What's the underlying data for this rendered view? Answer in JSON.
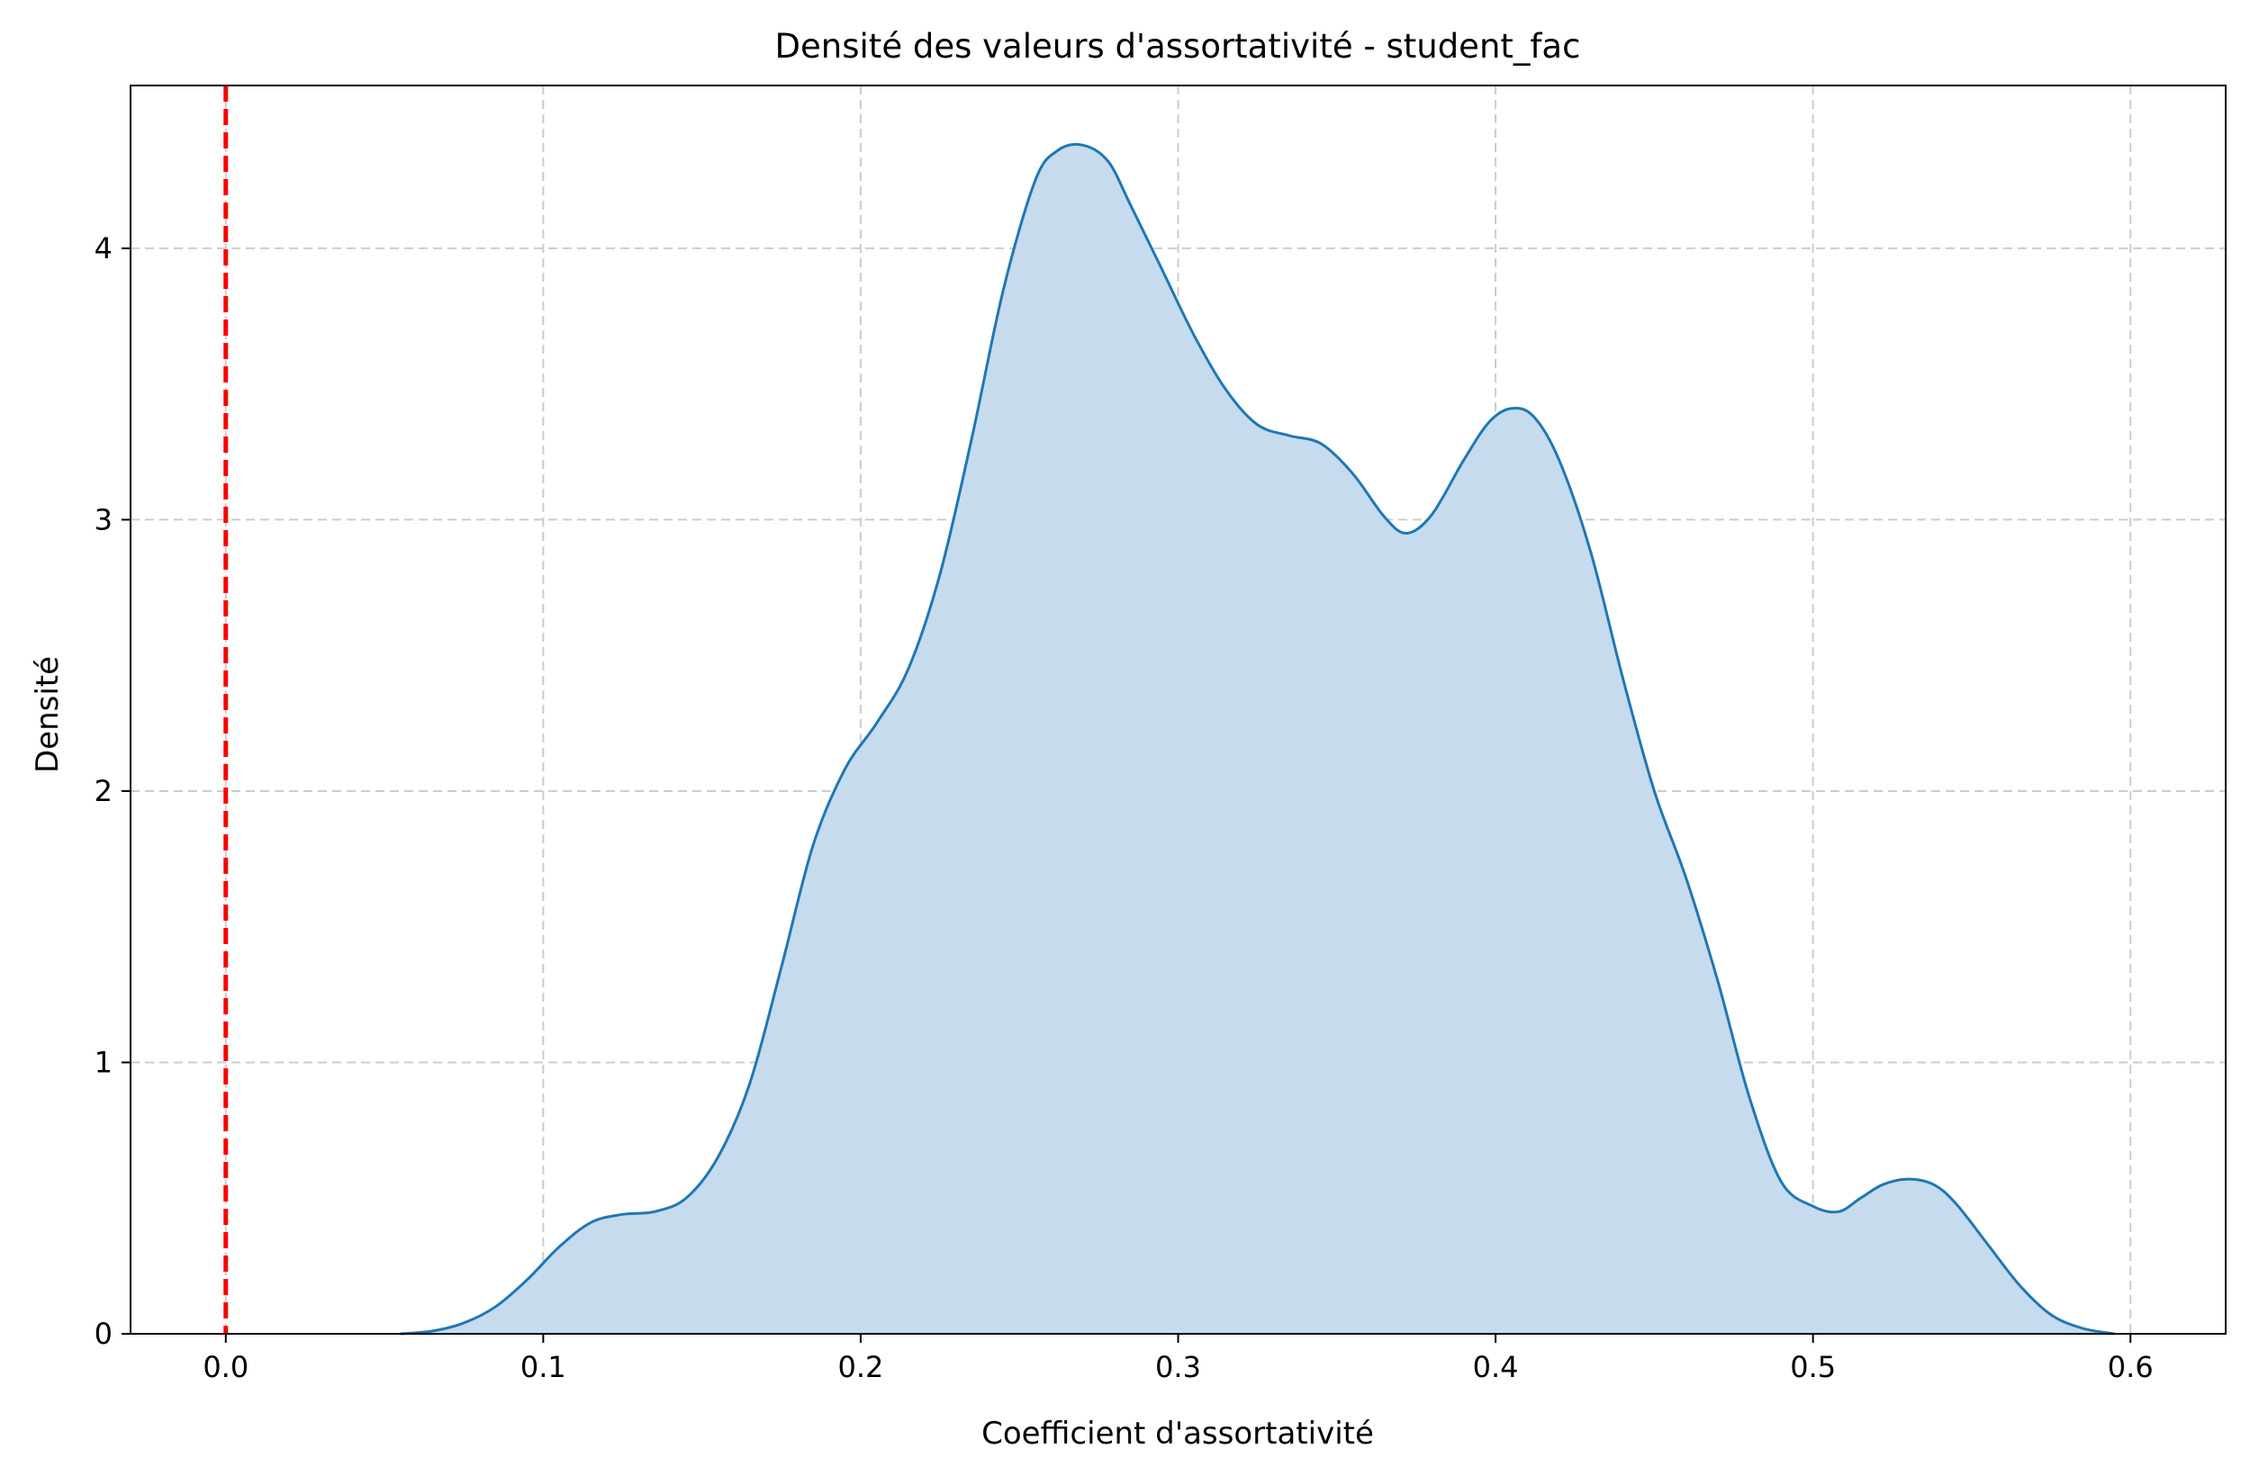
{
  "chart_data": {
    "type": "area",
    "title": "Densité des valeurs d'assortativité - student_fac",
    "xlabel": "Coefficient d'assortativité",
    "ylabel": "Densité",
    "xlim": [
      -0.03,
      0.63
    ],
    "ylim": [
      0,
      4.6
    ],
    "xticks": [
      0.0,
      0.1,
      0.2,
      0.3,
      0.4,
      0.5,
      0.6
    ],
    "xtick_labels": [
      "0.0",
      "0.1",
      "0.2",
      "0.3",
      "0.4",
      "0.5",
      "0.6"
    ],
    "yticks": [
      0,
      1,
      2,
      3,
      4
    ],
    "ytick_labels": [
      "0",
      "1",
      "2",
      "3",
      "4"
    ],
    "grid": true,
    "grid_style": "dashed",
    "series": [
      {
        "kind": "kde",
        "color": "#1f77b4",
        "fill_color": "#c6dbed",
        "x": [
          0.055,
          0.065,
          0.075,
          0.085,
          0.095,
          0.105,
          0.115,
          0.125,
          0.135,
          0.145,
          0.155,
          0.165,
          0.175,
          0.185,
          0.195,
          0.205,
          0.215,
          0.225,
          0.235,
          0.245,
          0.255,
          0.262,
          0.27,
          0.278,
          0.285,
          0.295,
          0.305,
          0.315,
          0.325,
          0.335,
          0.345,
          0.355,
          0.365,
          0.372,
          0.38,
          0.39,
          0.398,
          0.405,
          0.412,
          0.42,
          0.43,
          0.44,
          0.45,
          0.46,
          0.47,
          0.48,
          0.49,
          0.5,
          0.508,
          0.515,
          0.522,
          0.53,
          0.538,
          0.545,
          0.555,
          0.565,
          0.575,
          0.585,
          0.595
        ],
        "y": [
          0.0,
          0.01,
          0.04,
          0.1,
          0.2,
          0.32,
          0.41,
          0.44,
          0.45,
          0.5,
          0.65,
          0.92,
          1.35,
          1.8,
          2.08,
          2.25,
          2.45,
          2.8,
          3.3,
          3.85,
          4.25,
          4.36,
          4.38,
          4.32,
          4.16,
          3.92,
          3.68,
          3.48,
          3.35,
          3.31,
          3.28,
          3.17,
          3.01,
          2.95,
          3.02,
          3.22,
          3.36,
          3.41,
          3.38,
          3.22,
          2.88,
          2.42,
          2.0,
          1.68,
          1.3,
          0.87,
          0.56,
          0.47,
          0.45,
          0.5,
          0.55,
          0.57,
          0.55,
          0.48,
          0.33,
          0.18,
          0.07,
          0.02,
          0.0
        ]
      }
    ],
    "reference_line": {
      "x": 0.0,
      "color": "#ff0000",
      "style": "dashed"
    }
  }
}
